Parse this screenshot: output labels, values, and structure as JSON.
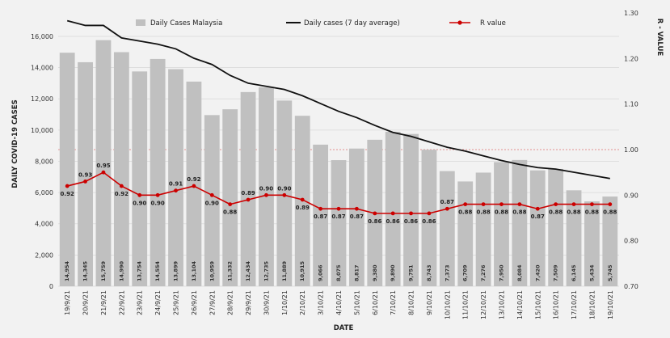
{
  "chart_data": {
    "type": "bar",
    "xlabel": "DATE",
    "ylabel": "DAILY COVID-19 CASES",
    "y2label": "R - VALUE",
    "ylim": [
      0,
      17500
    ],
    "y_ticks": [
      "0",
      "2,000",
      "4,000",
      "6,000",
      "8,000",
      "10,000",
      "12,000",
      "14,000",
      "16,000"
    ],
    "y2lim": [
      0.7,
      1.3
    ],
    "y2_ticks": [
      "0.70",
      "0.80",
      "0.90",
      "1.00",
      "1.10",
      "1.20",
      "1.30"
    ],
    "reference_line_r": 1.0,
    "legend_position": "top",
    "categories": [
      "19/9/21",
      "20/9/21",
      "21/9/21",
      "22/9/21",
      "23/9/21",
      "24/9/21",
      "25/9/21",
      "26/9/21",
      "27/9/21",
      "28/9/21",
      "29/9/21",
      "30/9/21",
      "1/10/21",
      "2/10/21",
      "3/10/21",
      "4/10/21",
      "5/10/21",
      "6/10/21",
      "7/10/21",
      "8/10/21",
      "9/10/21",
      "10/10/21",
      "11/10/21",
      "12/10/21",
      "13/10/21",
      "14/10/21",
      "15/10/21",
      "16/10/21",
      "17/10/21",
      "18/10/21",
      "19/10/21"
    ],
    "series": [
      {
        "name": "Daily Cases Malaysia",
        "kind": "bar",
        "color": "#c0c0c0",
        "values": [
          14954,
          14345,
          15759,
          14990,
          13754,
          14554,
          13899,
          13104,
          10959,
          11332,
          12434,
          12735,
          11889,
          10915,
          9066,
          8075,
          8817,
          9380,
          9890,
          9751,
          8743,
          7373,
          6709,
          7276,
          7950,
          8084,
          7420,
          7509,
          6145,
          5434,
          5745
        ],
        "labels": [
          "14,954",
          "14,345",
          "15,759",
          "14,990",
          "13,754",
          "14,554",
          "13,899",
          "13,104",
          "10,959",
          "11,332",
          "12,434",
          "12,735",
          "11,889",
          "10,915",
          "9,066",
          "8,075",
          "8,817",
          "9,380",
          "9,890",
          "9,751",
          "8,743",
          "7,373",
          "6,709",
          "7,276",
          "7,950",
          "8,084",
          "7,420",
          "7,509",
          "6,145",
          "5,434",
          "5,745"
        ]
      },
      {
        "name": "Daily cases (7 day average)",
        "kind": "line",
        "color": "#111111",
        "values": [
          17000,
          16700,
          16700,
          15900,
          15700,
          15500,
          15200,
          14600,
          14200,
          13500,
          13000,
          12800,
          12600,
          12200,
          11700,
          11200,
          10800,
          10300,
          9850,
          9600,
          9250,
          8900,
          8650,
          8350,
          8050,
          7800,
          7600,
          7500,
          7300,
          7100,
          6900
        ]
      },
      {
        "name": "R value",
        "kind": "line",
        "axis": "right",
        "color": "#cc0000",
        "values": [
          0.92,
          0.93,
          0.95,
          0.92,
          0.9,
          0.9,
          0.91,
          0.92,
          0.9,
          0.88,
          0.89,
          0.9,
          0.9,
          0.89,
          0.87,
          0.87,
          0.87,
          0.86,
          0.86,
          0.86,
          0.86,
          0.87,
          0.88,
          0.88,
          0.88,
          0.88,
          0.87,
          0.88,
          0.88,
          0.88,
          0.88
        ],
        "labels": [
          "0.92",
          "0.93",
          "0.95",
          "0.92",
          "0.90",
          "0.90",
          "0.91",
          "0.92",
          "0.90",
          "0.88",
          "0.89",
          "0.90",
          "0.90",
          "0.89",
          "0.87",
          "0.87",
          "0.87",
          "0.86",
          "0.86",
          "0.86",
          "0.86",
          "0.87",
          "0.88",
          "0.88",
          "0.88",
          "0.88",
          "0.87",
          "0.88",
          "0.88",
          "0.88",
          "0.88"
        ]
      }
    ]
  }
}
